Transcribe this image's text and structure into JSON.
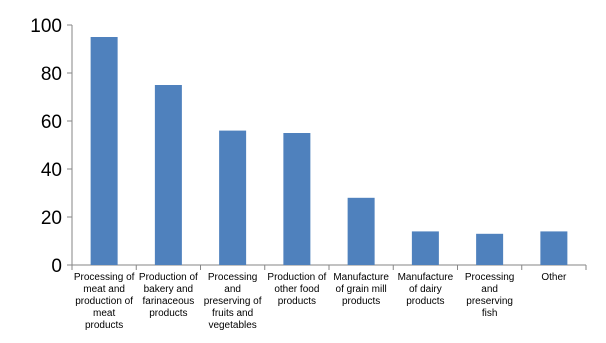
{
  "chart_data": {
    "type": "bar",
    "title": "",
    "xlabel": "",
    "ylabel": "",
    "categories": [
      "Processing of meat and production of meat products",
      "Production of bakery and farinaceous products",
      "Processing and preserving of fruits and vegetables",
      "Production of other food products",
      "Manufacture of grain mill products",
      "Manufacture of dairy products",
      "Processing and preserving fish",
      "Other"
    ],
    "category_lines": [
      [
        "Processing of",
        "meat and",
        "production of",
        "meat",
        "products"
      ],
      [
        "Production of",
        "bakery and",
        "farinaceous",
        "products"
      ],
      [
        "Processing",
        "and",
        "preserving of",
        "fruits and",
        "vegetables"
      ],
      [
        "Production of",
        "other food",
        "products"
      ],
      [
        "Manufacture",
        "of grain mill",
        "products"
      ],
      [
        "Manufacture",
        "of dairy",
        "products"
      ],
      [
        "Processing",
        "and",
        "preserving",
        "fish"
      ],
      [
        "Other"
      ]
    ],
    "values": [
      95,
      75,
      56,
      55,
      28,
      14,
      13,
      14
    ],
    "ylim": [
      0,
      100
    ],
    "yticks": [
      0,
      20,
      40,
      60,
      80,
      100
    ],
    "grid": false,
    "legend": "none",
    "bar_color": "#4f81bd"
  }
}
